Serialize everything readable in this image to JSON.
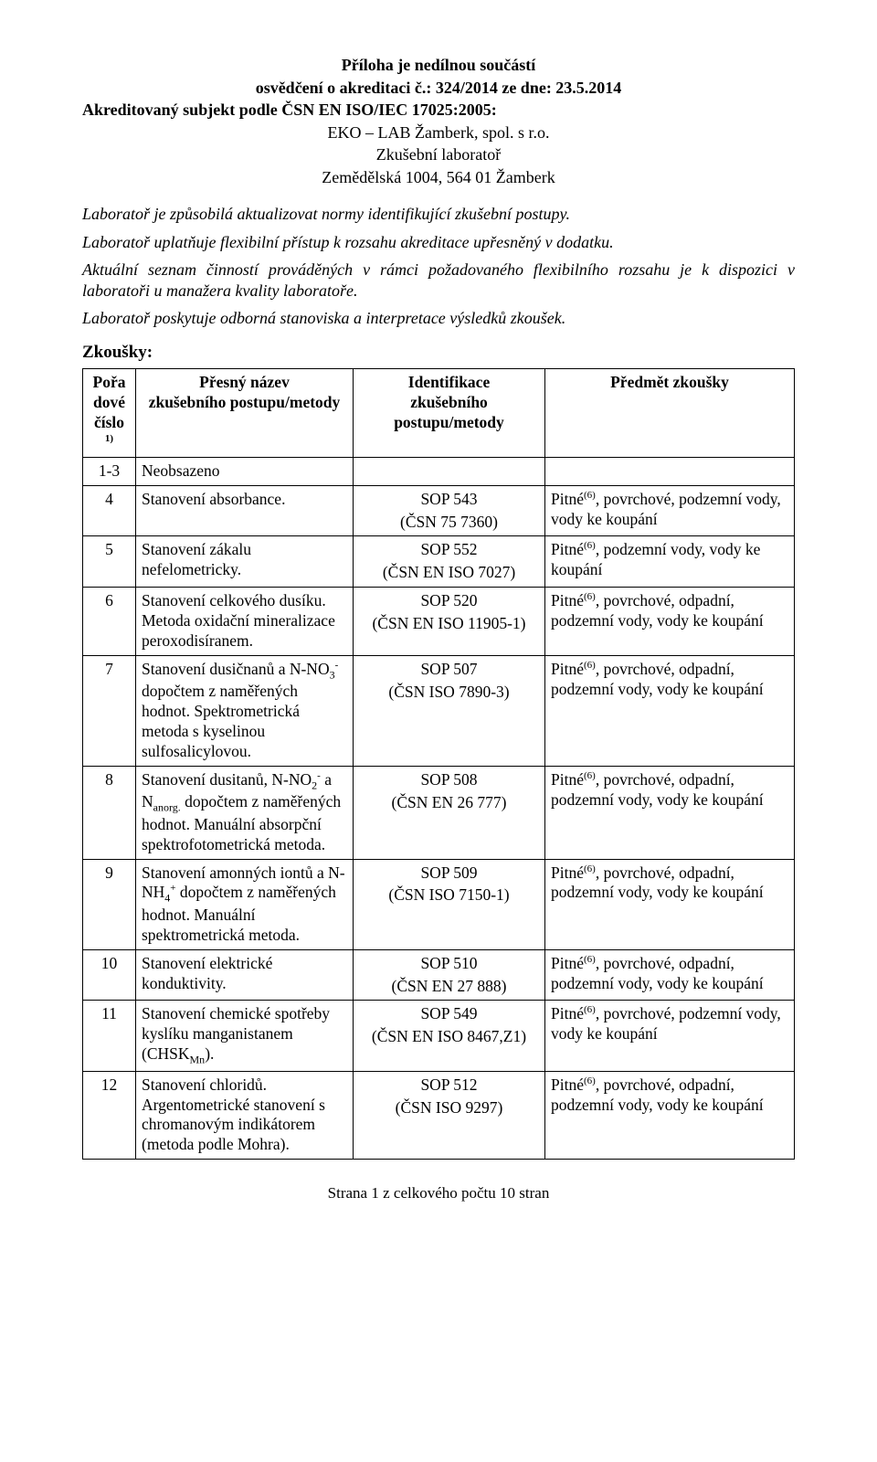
{
  "header": {
    "line1": "Příloha je nedílnou součástí",
    "line2": "osvědčení o akreditaci č.: 324/2014 ze dne: 23.5.2014",
    "akred": "Akreditovaný subjekt podle ČSN EN ISO/IEC 17025:2005:",
    "lab1": "EKO – LAB Žamberk, spol. s r.o.",
    "lab2": "Zkušební laboratoř",
    "lab3": "Zemědělská 1004, 564 01 Žamberk"
  },
  "para1": "Laboratoř je způsobilá aktualizovat normy identifikující zkušební postupy.",
  "para2": "Laboratoř uplatňuje flexibilní přístup k rozsahu akreditace upřesněný v dodatku.",
  "para3a": "Aktuální seznam činností prováděných v rámci požadovaného flexibilního rozsahu je k",
  "para3b": " dispozici v",
  "para3c": " laboratoři u manažera kvality laboratoře.",
  "para4": "Laboratoř poskytuje odborná stanoviska a interpretace výsledků zkoušek.",
  "zkousky_title": "Zkoušky:",
  "thead": {
    "c1a": "Pořadové",
    "c1b": "číslo",
    "c1sup": "1)",
    "c2a": "Přesný název",
    "c2b": "zkušebního postupu/metody",
    "c3a": "Identifikace",
    "c3b": "zkušebního postupu/metody",
    "c4": "Předmět zkoušky"
  },
  "rows": [
    {
      "n": "1-3",
      "name": "Neobsazeno",
      "id": "",
      "subj": ""
    },
    {
      "n": "4",
      "name": "Stanovení absorbance.",
      "id": "SOP 543\n(ČSN 75 7360)",
      "subj": "Pitné(6), povrchové, podzemní vody, vody ke koupání"
    },
    {
      "n": "5",
      "name": "Stanovení zákalu nefelometricky.",
      "id": "SOP 552\n(ČSN EN ISO 7027)",
      "subj": "Pitné(6), podzemní vody, vody ke koupání"
    },
    {
      "n": "6",
      "name": "Stanovení celkového dusíku. Metoda oxidační mineralizace peroxodisíranem.",
      "id": "SOP 520\n(ČSN EN ISO 11905-1)",
      "subj": "Pitné(6), povrchové, odpadní, podzemní vody, vody ke koupání"
    },
    {
      "n": "7",
      "name": "Stanovení dusičnanů a N-NO3- dopočtem z naměřených hodnot. Spektrometrická metoda s kyselinou sulfosalicylovou.",
      "id": "SOP 507\n(ČSN ISO 7890-3)",
      "subj": "Pitné(6), povrchové, odpadní, podzemní vody, vody ke koupání"
    },
    {
      "n": "8",
      "name": "Stanovení dusitanů, N-NO2- a Nanorg. dopočtem z naměřených hodnot. Manuální absorpční spektrofotometrická metoda.",
      "id": "SOP 508\n(ČSN EN 26 777)",
      "subj": "Pitné(6), povrchové, odpadní, podzemní vody, vody ke koupání"
    },
    {
      "n": "9",
      "name": "Stanovení amonných iontů a N-NH4+ dopočtem z naměřených hodnot. Manuální spektrometrická metoda.",
      "id": "SOP 509\n(ČSN ISO 7150-1)",
      "subj": "Pitné(6), povrchové, odpadní, podzemní vody, vody ke koupání"
    },
    {
      "n": "10",
      "name": "Stanovení elektrické konduktivity.",
      "id": "SOP 510\n(ČSN EN 27 888)",
      "subj": "Pitné(6), povrchové, odpadní, podzemní vody, vody ke koupání"
    },
    {
      "n": "11",
      "name": "Stanovení chemické spotřeby kyslíku manganistanem (CHSKMn).",
      "id": "SOP 549\n(ČSN EN ISO 8467,Z1)",
      "subj": "Pitné(6), povrchové, podzemní vody, vody ke koupání"
    },
    {
      "n": "12",
      "name": "Stanovení chloridů. Argentometrické stanovení s chromanovým indikátorem (metoda podle Mohra).",
      "id": "SOP 512\n(ČSN ISO 9297)",
      "subj": "Pitné(6), povrchové, odpadní, podzemní vody, vody ke koupání"
    }
  ],
  "footer": "Strana 1 z celkového počtu 10 stran"
}
